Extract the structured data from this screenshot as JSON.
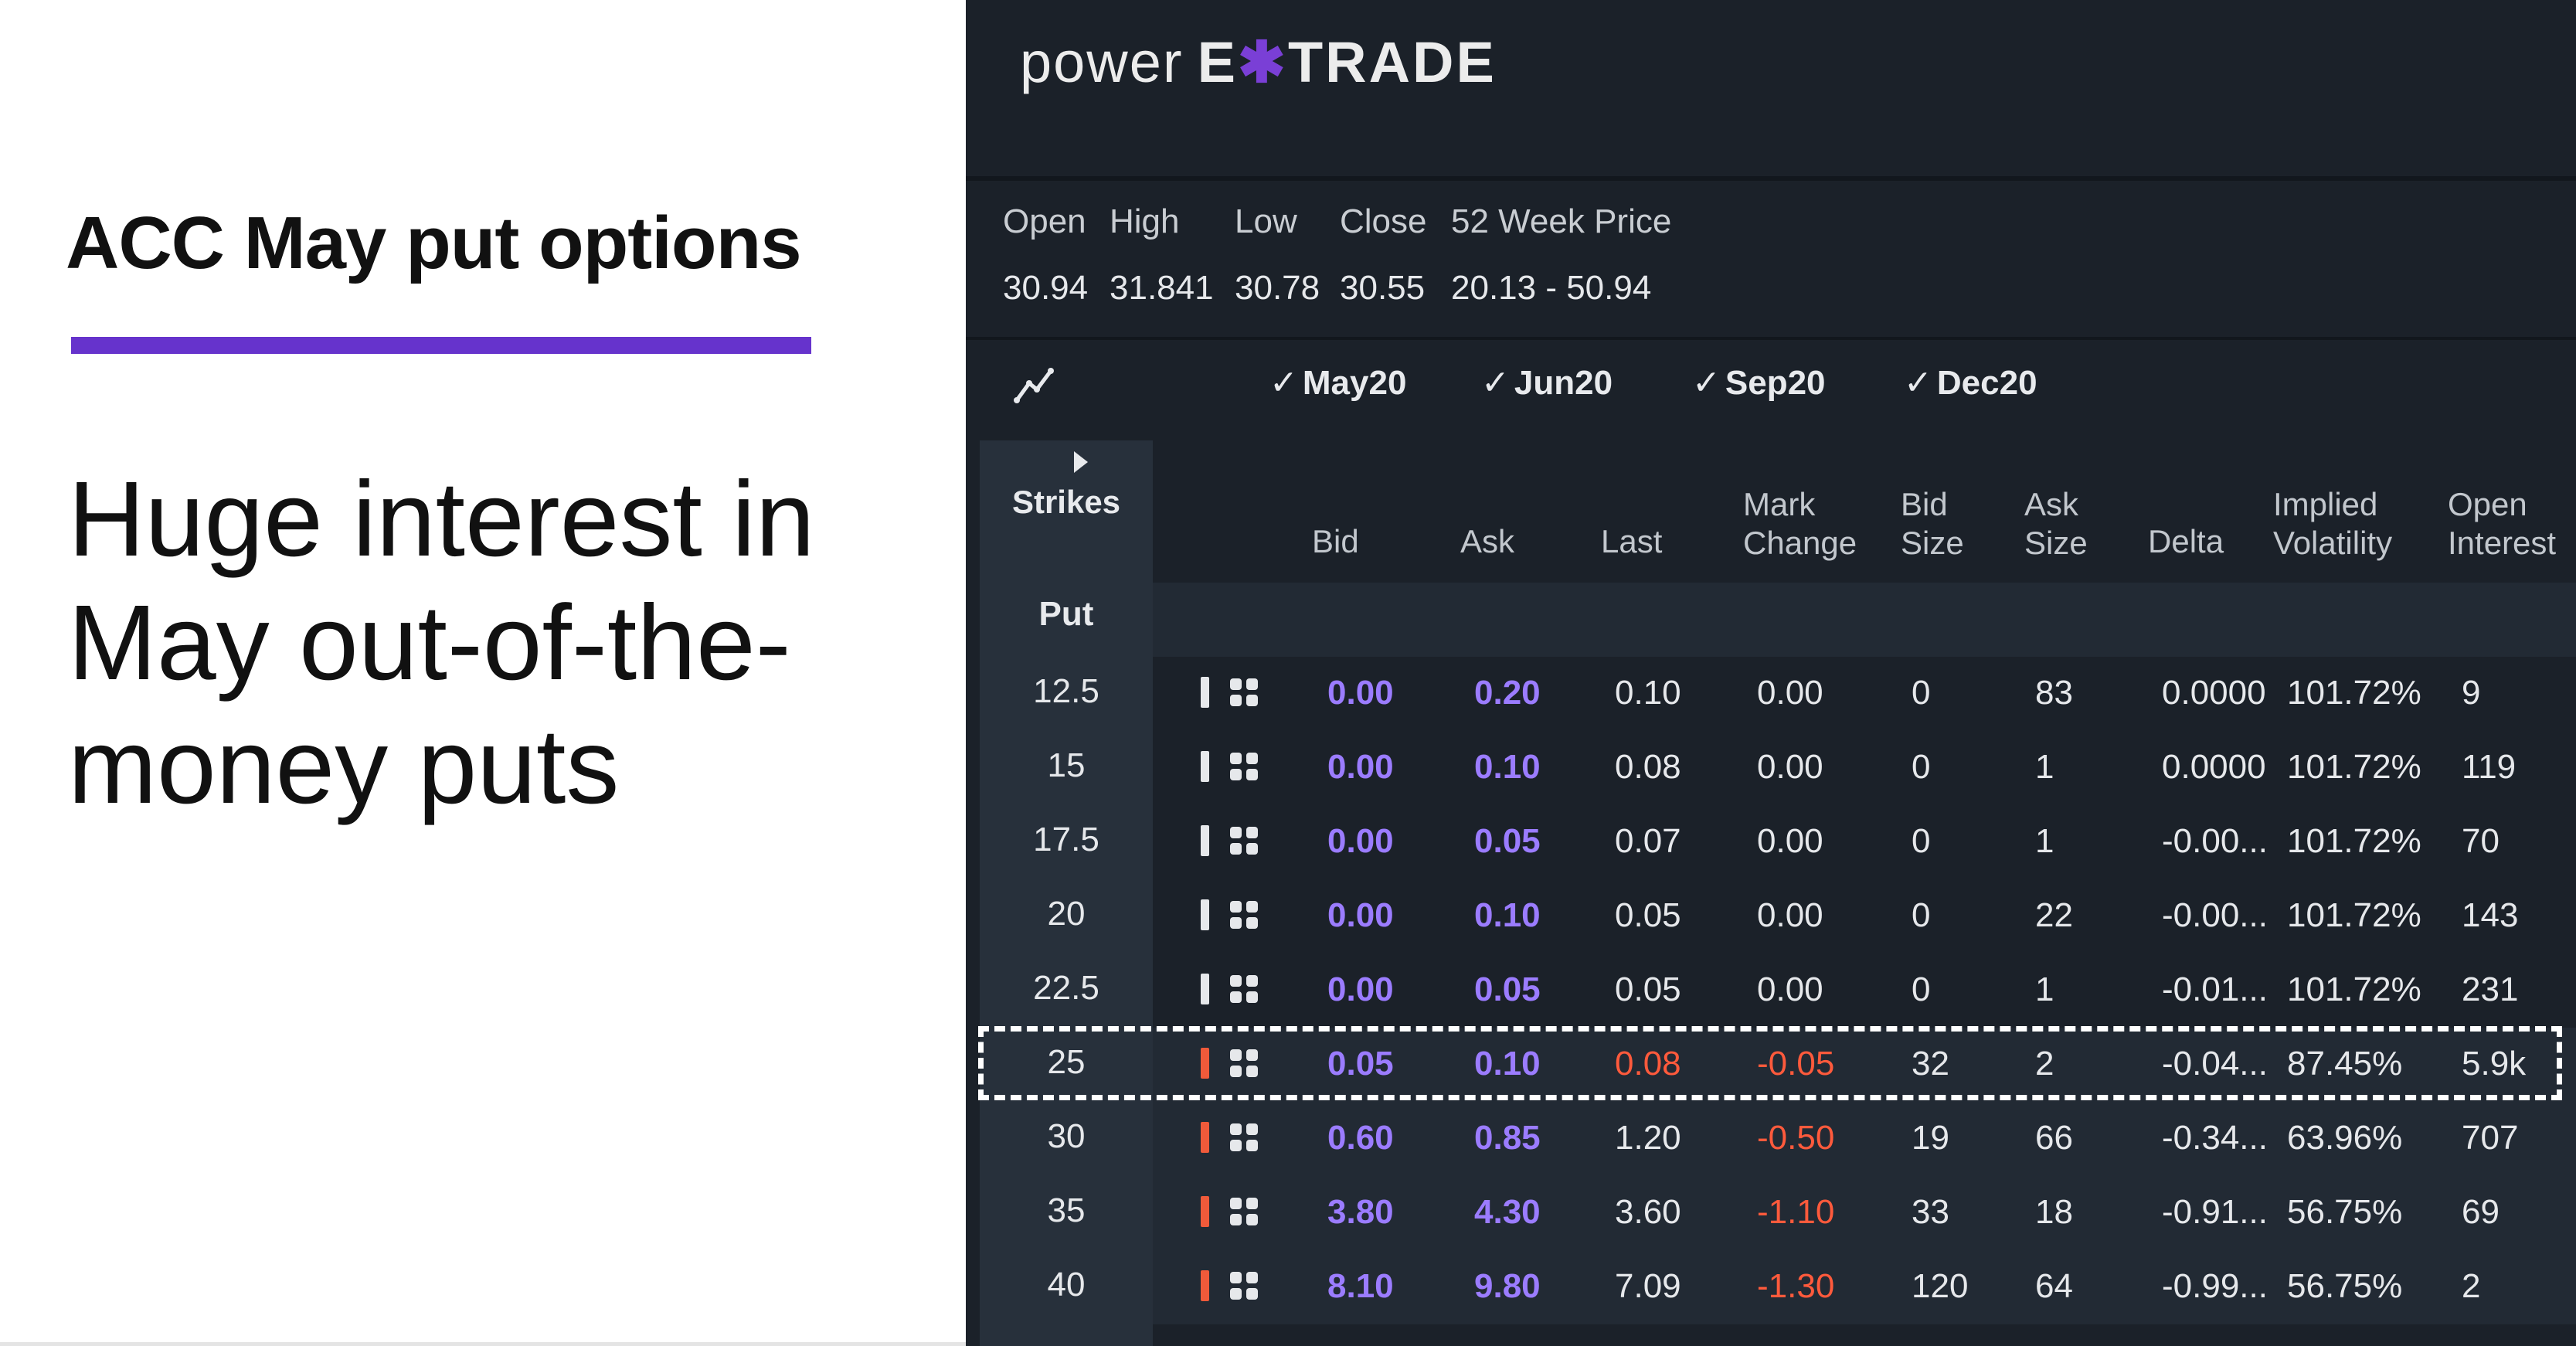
{
  "slide": {
    "headline": "ACC May put options",
    "body": "Huge interest in May out-of-the-money puts",
    "accent_color": "#6633cc"
  },
  "app": {
    "logo_power": "power",
    "logo_e": "E",
    "logo_star": "✱",
    "logo_trade": "TRADE"
  },
  "quote": {
    "labels": [
      "Open",
      "High",
      "Low",
      "Close",
      "52 Week Price"
    ],
    "values": [
      "30.94",
      "31.841",
      "30.78",
      "30.55",
      "20.13 - 50.94"
    ]
  },
  "chart_icon": "line-chart-icon",
  "expirations": [
    "May20",
    "Jun20",
    "Sep20",
    "Dec20"
  ],
  "check_glyph": "✓",
  "strikes_header": "Strikes",
  "put_label": "Put",
  "columns": {
    "bid": "Bid",
    "ask": "Ask",
    "last": "Last",
    "mark_change": [
      "Mark",
      "Change"
    ],
    "bid_size": [
      "Bid",
      "Size"
    ],
    "ask_size": [
      "Ask",
      "Size"
    ],
    "delta": "Delta",
    "iv": [
      "Implied",
      "Volatility"
    ],
    "oi": [
      "Open",
      "Interest"
    ]
  },
  "colors": {
    "panel_bg": "#1b2129",
    "bid_ask": "#9b7cff",
    "negative": "#ff5a3c",
    "in_the_money_marker": "#f05a3a"
  },
  "rows": [
    {
      "strike": "12.5",
      "bid": "0.00",
      "ask": "0.20",
      "last": "0.10",
      "mark_change": "0.00",
      "bid_size": "0",
      "ask_size": "83",
      "delta": "0.0000",
      "iv": "101.72%",
      "oi": "9",
      "itm": false
    },
    {
      "strike": "15",
      "bid": "0.00",
      "ask": "0.10",
      "last": "0.08",
      "mark_change": "0.00",
      "bid_size": "0",
      "ask_size": "1",
      "delta": "0.0000",
      "iv": "101.72%",
      "oi": "119",
      "itm": false
    },
    {
      "strike": "17.5",
      "bid": "0.00",
      "ask": "0.05",
      "last": "0.07",
      "mark_change": "0.00",
      "bid_size": "0",
      "ask_size": "1",
      "delta": "-0.00...",
      "iv": "101.72%",
      "oi": "70",
      "itm": false
    },
    {
      "strike": "20",
      "bid": "0.00",
      "ask": "0.10",
      "last": "0.05",
      "mark_change": "0.00",
      "bid_size": "0",
      "ask_size": "22",
      "delta": "-0.00...",
      "iv": "101.72%",
      "oi": "143",
      "itm": false
    },
    {
      "strike": "22.5",
      "bid": "0.00",
      "ask": "0.05",
      "last": "0.05",
      "mark_change": "0.00",
      "bid_size": "0",
      "ask_size": "1",
      "delta": "-0.01...",
      "iv": "101.72%",
      "oi": "231",
      "itm": false
    },
    {
      "strike": "25",
      "bid": "0.05",
      "ask": "0.10",
      "last": "0.08",
      "mark_change": "-0.05",
      "bid_size": "32",
      "ask_size": "2",
      "delta": "-0.04...",
      "iv": "87.45%",
      "oi": "5.9k",
      "itm": true,
      "last_red": true
    },
    {
      "strike": "30",
      "bid": "0.60",
      "ask": "0.85",
      "last": "1.20",
      "mark_change": "-0.50",
      "bid_size": "19",
      "ask_size": "66",
      "delta": "-0.34...",
      "iv": "63.96%",
      "oi": "707",
      "itm": true
    },
    {
      "strike": "35",
      "bid": "3.80",
      "ask": "4.30",
      "last": "3.60",
      "mark_change": "-1.10",
      "bid_size": "33",
      "ask_size": "18",
      "delta": "-0.91...",
      "iv": "56.75%",
      "oi": "69",
      "itm": true
    },
    {
      "strike": "40",
      "bid": "8.10",
      "ask": "9.80",
      "last": "7.09",
      "mark_change": "-1.30",
      "bid_size": "120",
      "ask_size": "64",
      "delta": "-0.99...",
      "iv": "56.75%",
      "oi": "2",
      "itm": true
    }
  ]
}
